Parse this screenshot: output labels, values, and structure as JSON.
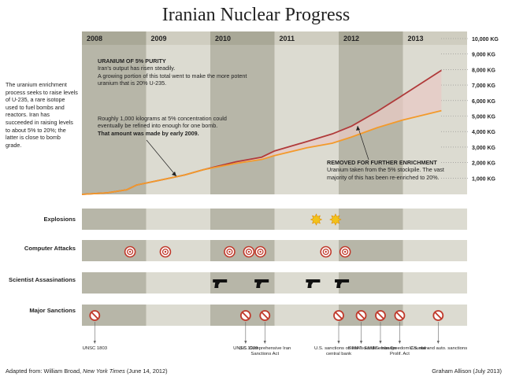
{
  "title": "Iranian Nuclear Progress",
  "side_note": "The uranium enrichment process seeks to raise levels of U-235, a rare isotope used to fuel bombs and reactors. Iran has succeeded in raising levels to about 5% to 20%; the latter is close to bomb grade.",
  "annotations": {
    "purity_title": "URANIUM OF 5% PURITY",
    "purity_line1": "Iran's output has risen steadily.",
    "purity_line2": "A growing portion of this total went to make the more potent uranium that is 20% U-235.",
    "bomb_text": "Roughly 1,000 kilograms at 5% concentration could eventually be refined into enough for one bomb.",
    "bomb_bold": "That amount was made by early 2009.",
    "removed_title": "REMOVED FOR FURTHER ENRICHMENT",
    "removed_text": "Uranium taken from the 5% stockpile. The vast majority of this has been re-enriched to 20%."
  },
  "rows": {
    "explosions": "Explosions",
    "computer_attacks": "Computer Attacks",
    "scientist_assassinations": "Scientist Assasinations",
    "major_sanctions": "Major Sanctions"
  },
  "source": "Adapted from: William Broad, ",
  "source_pub": "New York Times",
  "source_date": " (June 14, 2012)",
  "credit": "Graham Allison (July 2013)",
  "colors": {
    "band_dark": "#b7b6a8",
    "band_light": "#dcdbd1",
    "total_line": "#b03a3a",
    "fill_area": "#e8c9c4",
    "stock_line": "#f39a2b",
    "target": "#c0392b",
    "gun": "#111111",
    "explosion": "#f2c21a"
  },
  "chart_data": {
    "type": "line",
    "x_axis_years": [
      "2008",
      "2009",
      "2010",
      "2011",
      "2012",
      "2013"
    ],
    "y_tick_labels": [
      "1,000 KG",
      "2,000 KG",
      "3,000 KG",
      "4,000 KG",
      "5,000 KG",
      "6,000 KG",
      "7,000 KG",
      "8,000 KG",
      "9,000 KG",
      "10,000 KG"
    ],
    "ylim": [
      0,
      10000
    ],
    "series": [
      {
        "name": "total",
        "points": [
          [
            2008.0,
            0
          ],
          [
            2008.4,
            100
          ],
          [
            2008.7,
            300
          ],
          [
            2008.85,
            600
          ],
          [
            2009.2,
            900
          ],
          [
            2009.6,
            1250
          ],
          [
            2009.9,
            1600
          ],
          [
            2010.4,
            2100
          ],
          [
            2010.8,
            2400
          ],
          [
            2011.0,
            2800
          ],
          [
            2011.5,
            3400
          ],
          [
            2011.9,
            3900
          ],
          [
            2012.2,
            4400
          ],
          [
            2012.6,
            5350
          ],
          [
            2013.0,
            6400
          ],
          [
            2013.6,
            8000
          ]
        ]
      },
      {
        "name": "stockpile",
        "points": [
          [
            2008.0,
            0
          ],
          [
            2008.4,
            100
          ],
          [
            2008.7,
            300
          ],
          [
            2008.85,
            600
          ],
          [
            2009.2,
            900
          ],
          [
            2009.6,
            1250
          ],
          [
            2009.9,
            1600
          ],
          [
            2010.4,
            2000
          ],
          [
            2010.8,
            2250
          ],
          [
            2011.0,
            2500
          ],
          [
            2011.5,
            3000
          ],
          [
            2011.9,
            3300
          ],
          [
            2012.2,
            3700
          ],
          [
            2012.6,
            4300
          ],
          [
            2013.0,
            4800
          ],
          [
            2013.6,
            5400
          ]
        ]
      }
    ],
    "events": {
      "explosions": [
        2011.65,
        2011.95
      ],
      "computer_attacks": [
        2008.75,
        2009.3,
        2010.3,
        2010.6,
        2010.78,
        2011.8,
        2012.1
      ],
      "scientist_assassinations": [
        2010.15,
        2010.8,
        2011.6,
        2012.05
      ],
      "major_sanctions": [
        2008.2,
        2010.55,
        2010.85,
        2012.0,
        2012.35,
        2012.65,
        2012.95,
        2013.55
      ]
    },
    "sanction_labels": [
      "UNSC 1803",
      "UNSC 1929",
      "U.S. Comprehensive Iran Sanctions Act",
      "U.S. sanctions on Iran's central bank",
      "SWIFT cutoff",
      "EU oil embargo",
      "U.S. Iran Freedom Counter-Prolif. Act",
      "U.S. rial and auto. sanctions"
    ]
  }
}
